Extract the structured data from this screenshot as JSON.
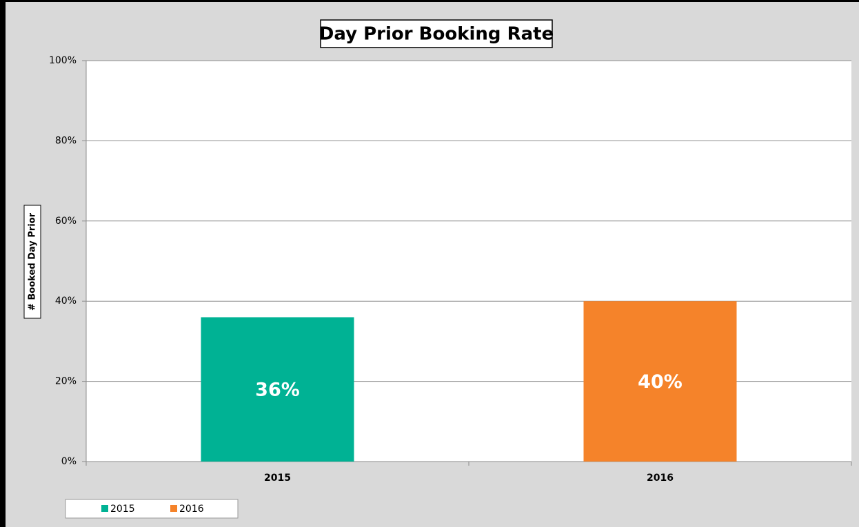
{
  "chart_data": {
    "type": "bar",
    "title": "Day Prior Booking Rate",
    "y_label": "# Booked Day Prior",
    "categories": [
      "2015",
      "2016"
    ],
    "series": [
      {
        "name": "2015",
        "color": "#00b294",
        "values": [
          36,
          null
        ],
        "value_labels": [
          "36%",
          null
        ]
      },
      {
        "name": "2016",
        "color": "#f5832a",
        "values": [
          null,
          40
        ],
        "value_labels": [
          null,
          "40%"
        ]
      }
    ],
    "ylim": [
      0,
      100
    ],
    "yticks": [
      {
        "value": 0,
        "label": "0%"
      },
      {
        "value": 20,
        "label": "20%"
      },
      {
        "value": 40,
        "label": "40%"
      },
      {
        "value": 60,
        "label": "60%"
      },
      {
        "value": 80,
        "label": "80%"
      },
      {
        "value": 100,
        "label": "100%"
      }
    ],
    "grid": true,
    "legend": "bottom-left"
  }
}
